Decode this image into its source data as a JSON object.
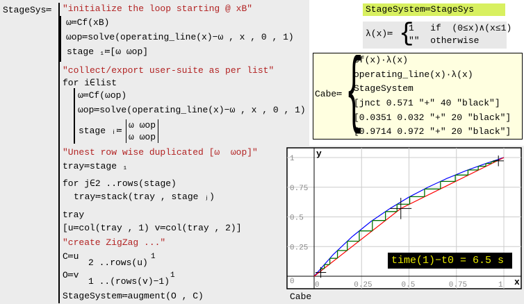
{
  "program": {
    "name": "StageSys",
    "assign": "≔",
    "lines": [
      "\"initialize the loop starting @ xB\"",
      "ω≔Cf(xB)",
      "ωop≔solve(operating_line(x)−ω , x , 0 , 1)",
      "stage ₁≔[ω ωop]",
      "\"collect/export user-suite as per list\"",
      "for i∈list",
      "ω≔Cf(ωop)",
      "ωop≔solve(operating_line(x)−ω , x , 0 , 1)",
      "stage ᵢ≔",
      "ω ωop",
      "ω ωop",
      "\"Unest row wise duplicated [ω  ωop]\"",
      "tray≔stage ₁",
      "for j∈2 ..rows(stage)",
      "tray≔stack(tray , stage ⱼ)",
      "tray",
      "[u≔col(tray , 1) v≔col(tray , 2)]",
      "\"create ZigZag ...\"",
      "C≔u",
      "2 ..rows(u)",
      "1",
      "O≔v",
      "1 ..(rows(v)−1)",
      "1",
      "StageSystem≔augment(O , C)"
    ]
  },
  "highlight": "StageSystem≔StageSys",
  "lambda": {
    "head": "λ(x)≔",
    "row1": "1   if  (0≤x)∧(x≤1)",
    "row2": "\"\"  otherwise"
  },
  "cabe": {
    "head": "Cabe≔",
    "rows": [
      "Cf(x)·λ(x)",
      "operating_line(x)·λ(x)",
      "StageSystem",
      "[jnct 0.571 \"+\" 40 \"black\"]",
      "[0.0351 0.032 \"+\" 20 \"black\"]",
      "[0.9714 0.972 \"+\" 20 \"black\"]"
    ]
  },
  "plot_caption": "Cabe",
  "timer": "time(1)−t0 = 6.5 s",
  "chart_data": {
    "type": "line",
    "xlabel": "x",
    "ylabel": "y",
    "xlim": [
      0,
      1
    ],
    "ylim": [
      0,
      1
    ],
    "xticks": [
      "0",
      "0.25",
      "0.5",
      "0.75",
      "1"
    ],
    "yticks": [
      "0",
      "0.25",
      "0.5",
      "0.75",
      "1"
    ],
    "grid": true,
    "series": [
      {
        "color": "#0000ff",
        "points": [
          [
            0,
            0
          ],
          [
            0.1,
            0.182
          ],
          [
            0.2,
            0.333
          ],
          [
            0.3,
            0.462
          ],
          [
            0.4,
            0.571
          ],
          [
            0.5,
            0.667
          ],
          [
            0.6,
            0.75
          ],
          [
            0.7,
            0.824
          ],
          [
            0.8,
            0.889
          ],
          [
            0.9,
            0.947
          ],
          [
            1,
            1
          ]
        ]
      },
      {
        "color": "#ff0000",
        "points": [
          [
            0,
            0
          ],
          [
            0.457,
            0.571
          ],
          [
            1,
            1
          ]
        ]
      },
      {
        "color": "#007000",
        "stage_x": [
          0.035,
          0.054,
          0.083,
          0.123,
          0.175,
          0.238,
          0.307,
          0.376,
          0.437,
          0.504,
          0.582,
          0.666,
          0.744,
          0.811,
          0.865,
          0.905,
          0.933,
          0.952,
          0.972
        ]
      }
    ],
    "markers": [
      {
        "x": 0.457,
        "y": 0.571,
        "symbol": "+",
        "size": 40
      },
      {
        "x": 0.0351,
        "y": 0.032,
        "symbol": "+",
        "size": 20
      },
      {
        "x": 0.9714,
        "y": 0.972,
        "symbol": "+",
        "size": 20
      }
    ]
  }
}
